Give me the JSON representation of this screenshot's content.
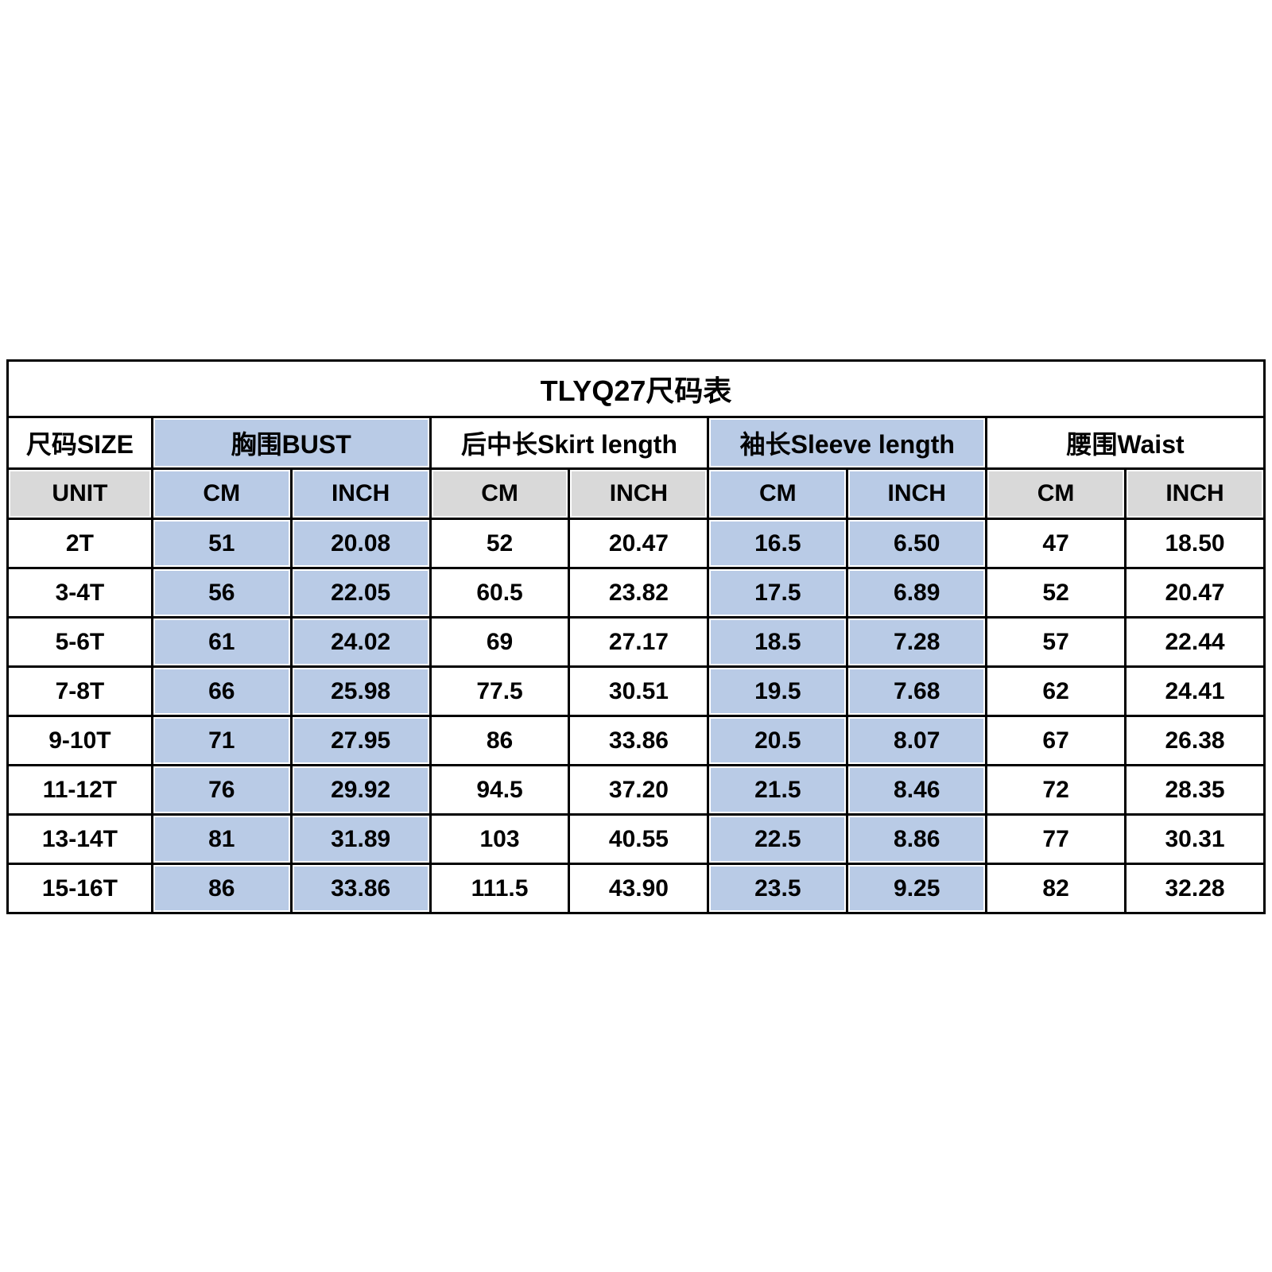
{
  "colors": {
    "highlight": "#b9cbe6",
    "unit_bg": "#d9d9d9",
    "border": "#000000",
    "page_bg": "#ffffff"
  },
  "chart_data": {
    "type": "table",
    "title": "TLYQ27尺码表",
    "size_header": "尺码SIZE",
    "unit_label": "UNIT",
    "groups": [
      {
        "label": "胸围BUST",
        "highlight": true
      },
      {
        "label": "后中长Skirt length",
        "highlight": false
      },
      {
        "label": "袖长Sleeve length",
        "highlight": true
      },
      {
        "label": "腰围Waist",
        "highlight": false
      }
    ],
    "unit_columns": [
      "CM",
      "INCH"
    ],
    "rows": [
      {
        "size": "2T",
        "values": [
          "51",
          "20.08",
          "52",
          "20.47",
          "16.5",
          "6.50",
          "47",
          "18.50"
        ]
      },
      {
        "size": "3-4T",
        "values": [
          "56",
          "22.05",
          "60.5",
          "23.82",
          "17.5",
          "6.89",
          "52",
          "20.47"
        ]
      },
      {
        "size": "5-6T",
        "values": [
          "61",
          "24.02",
          "69",
          "27.17",
          "18.5",
          "7.28",
          "57",
          "22.44"
        ]
      },
      {
        "size": "7-8T",
        "values": [
          "66",
          "25.98",
          "77.5",
          "30.51",
          "19.5",
          "7.68",
          "62",
          "24.41"
        ]
      },
      {
        "size": "9-10T",
        "values": [
          "71",
          "27.95",
          "86",
          "33.86",
          "20.5",
          "8.07",
          "67",
          "26.38"
        ]
      },
      {
        "size": "11-12T",
        "values": [
          "76",
          "29.92",
          "94.5",
          "37.20",
          "21.5",
          "8.46",
          "72",
          "28.35"
        ]
      },
      {
        "size": "13-14T",
        "values": [
          "81",
          "31.89",
          "103",
          "40.55",
          "22.5",
          "8.86",
          "77",
          "30.31"
        ]
      },
      {
        "size": "15-16T",
        "values": [
          "86",
          "33.86",
          "111.5",
          "43.90",
          "23.5",
          "9.25",
          "82",
          "32.28"
        ]
      }
    ]
  }
}
